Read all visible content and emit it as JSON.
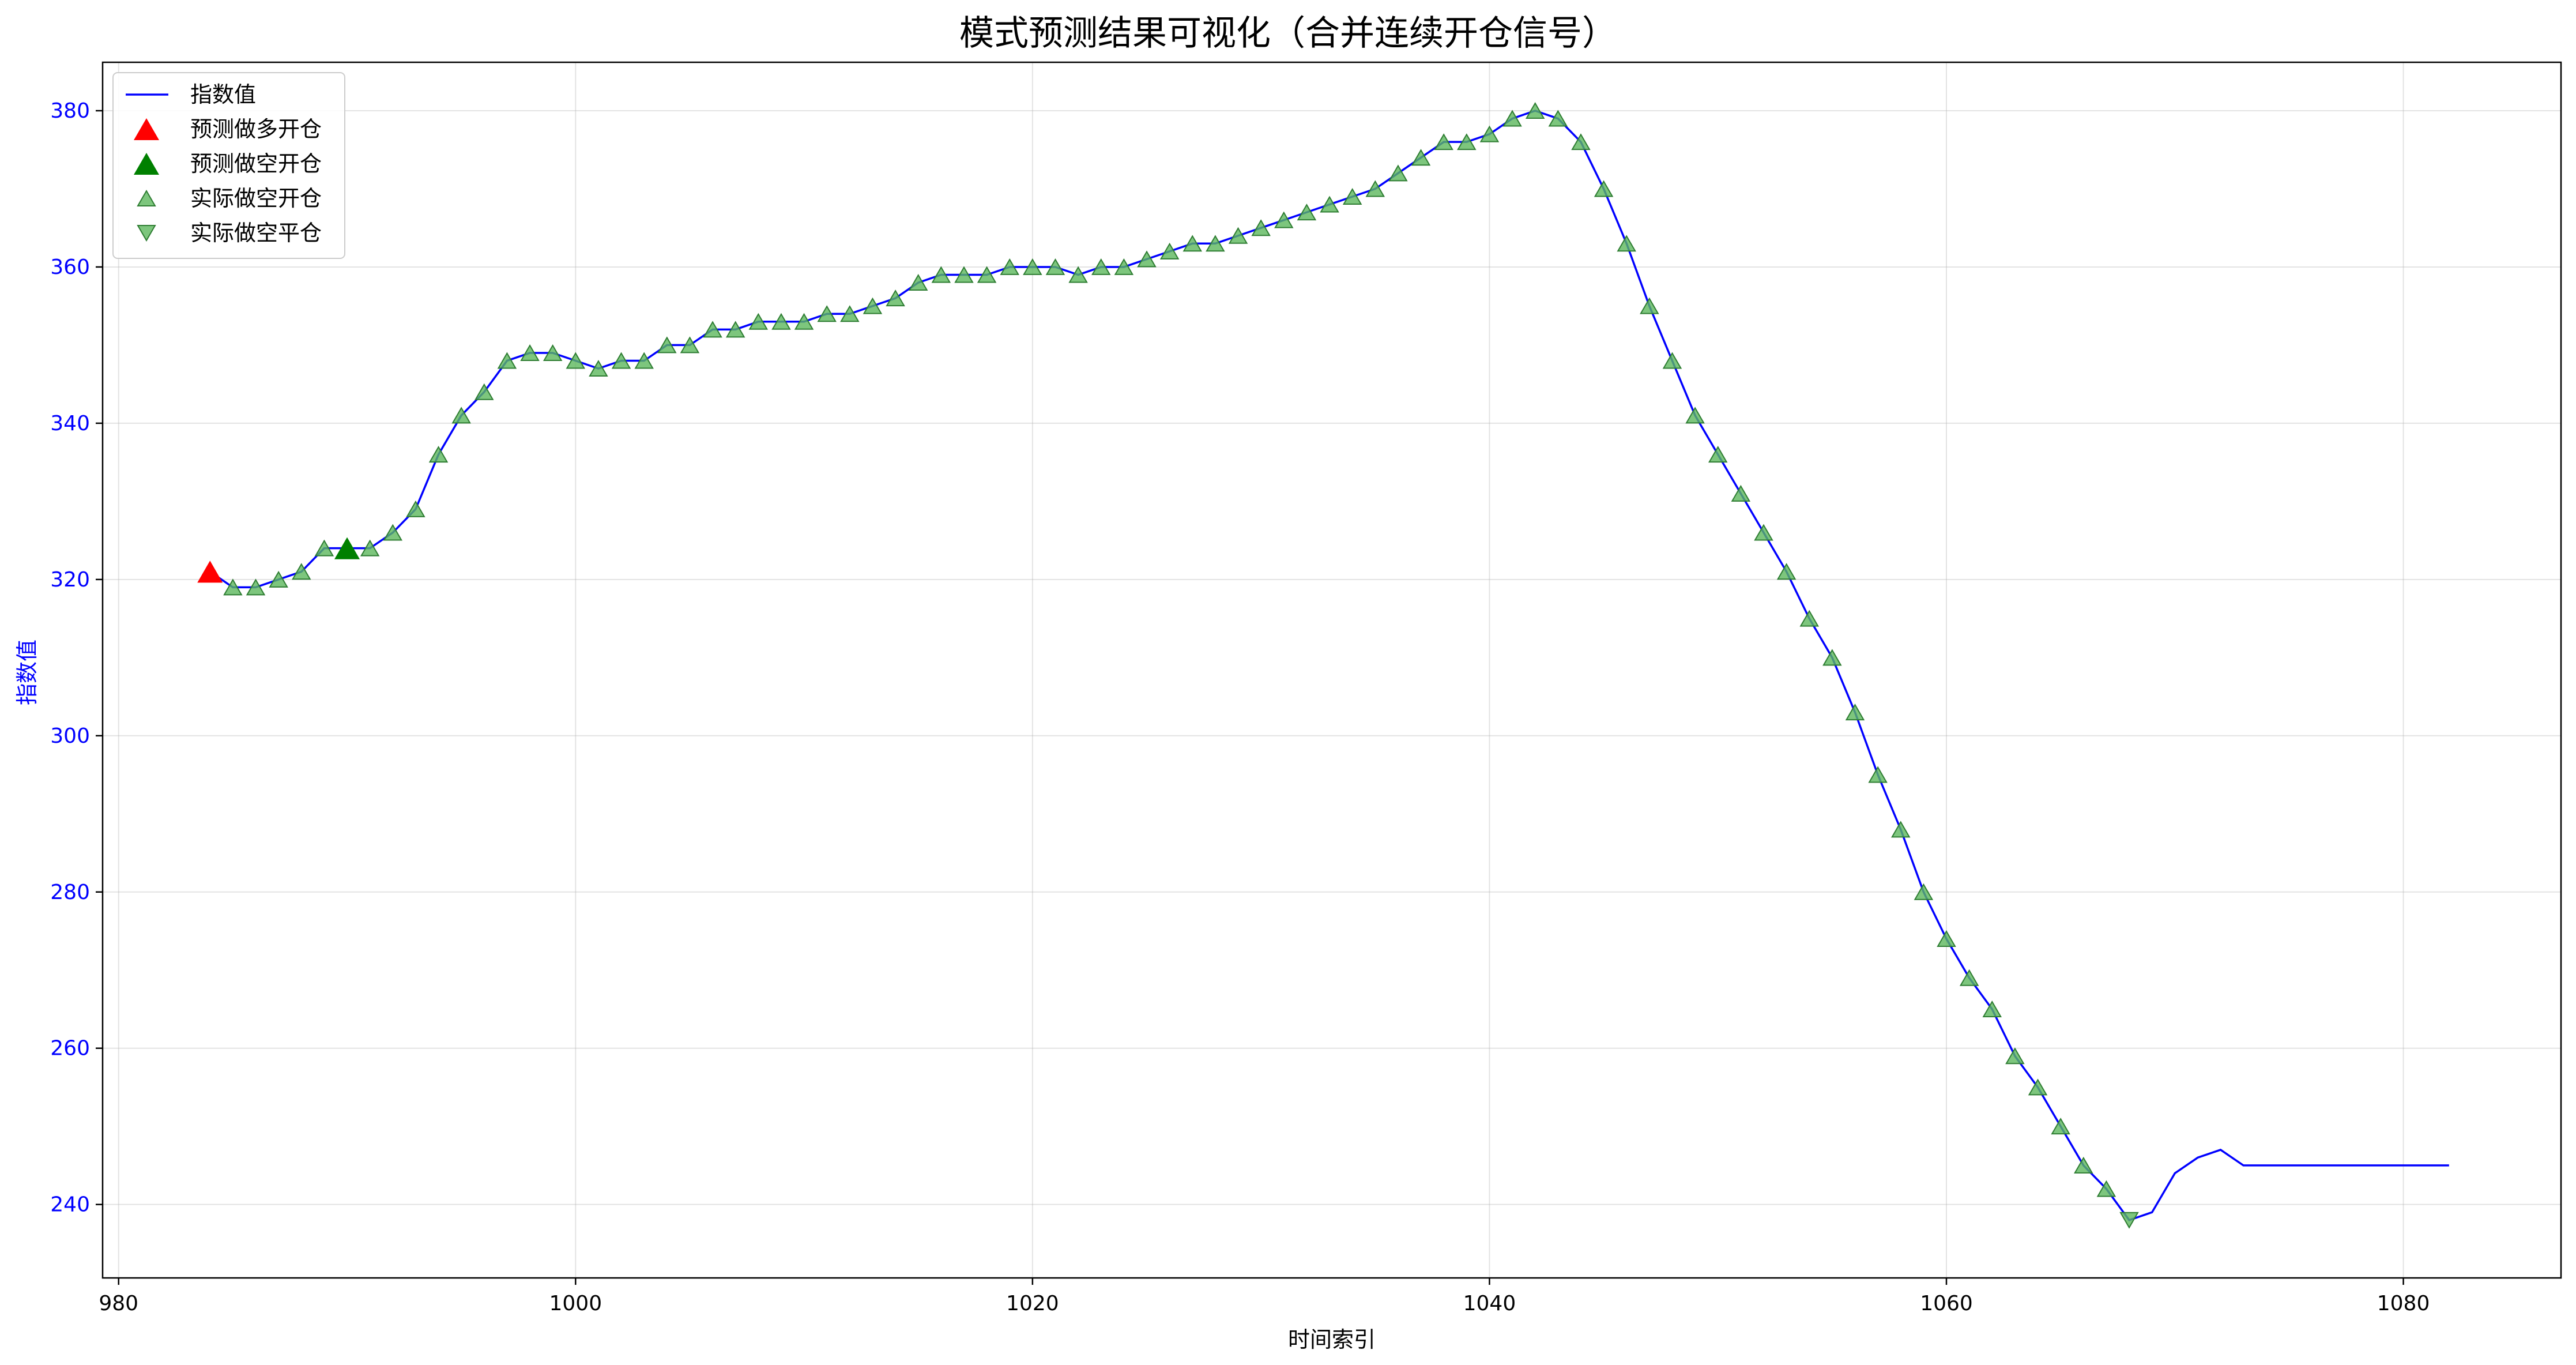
{
  "chart_data": {
    "type": "line",
    "title": "模式预测结果可视化（合并连续开仓信号）",
    "xlabel": "时间索引",
    "ylabel": "指数值",
    "xlim": [
      979.3,
      1086.9
    ],
    "ylim": [
      230.6,
      386.2
    ],
    "xticks": [
      980,
      1000,
      1020,
      1040,
      1060,
      1080
    ],
    "yticks": [
      240,
      260,
      280,
      300,
      320,
      340,
      360,
      380
    ],
    "grid": true,
    "legend_position": "top-left",
    "colors": {
      "line": "#0000ff",
      "pred_long": "#ff0000",
      "pred_short": "#008000",
      "actual": "#5cb85c",
      "actual_edge": "#2e7d32",
      "ytick_color": "#0000ff"
    },
    "legend": [
      {
        "label": "指数值",
        "marker": "line"
      },
      {
        "label": "预测做多开仓",
        "marker": "pred_long"
      },
      {
        "label": "预测做空开仓",
        "marker": "pred_short"
      },
      {
        "label": "实际做空开仓",
        "marker": "actual_open"
      },
      {
        "label": "实际做空平仓",
        "marker": "actual_close"
      }
    ],
    "series": [
      {
        "name": "指数值",
        "x": [
          984,
          985,
          986,
          987,
          988,
          989,
          990,
          991,
          992,
          993,
          994,
          995,
          996,
          997,
          998,
          999,
          1000,
          1001,
          1002,
          1003,
          1004,
          1005,
          1006,
          1007,
          1008,
          1009,
          1010,
          1011,
          1012,
          1013,
          1014,
          1015,
          1016,
          1017,
          1018,
          1019,
          1020,
          1021,
          1022,
          1023,
          1024,
          1025,
          1026,
          1027,
          1028,
          1029,
          1030,
          1031,
          1032,
          1033,
          1034,
          1035,
          1036,
          1037,
          1038,
          1039,
          1040,
          1041,
          1042,
          1043,
          1044,
          1045,
          1046,
          1047,
          1048,
          1049,
          1050,
          1051,
          1052,
          1053,
          1054,
          1055,
          1056,
          1057,
          1058,
          1059,
          1060,
          1061,
          1062,
          1063,
          1064,
          1065,
          1066,
          1067,
          1068,
          1069,
          1070,
          1071,
          1072,
          1073,
          1074,
          1075,
          1076,
          1077,
          1078,
          1079,
          1080,
          1081,
          1082
        ],
        "y": [
          321,
          319,
          319,
          320,
          321,
          324,
          324,
          324,
          326,
          329,
          336,
          341,
          344,
          348,
          349,
          349,
          348,
          347,
          348,
          348,
          350,
          350,
          352,
          352,
          353,
          353,
          353,
          354,
          354,
          355,
          356,
          358,
          359,
          359,
          359,
          360,
          360,
          360,
          359,
          360,
          360,
          361,
          362,
          363,
          363,
          364,
          365,
          366,
          367,
          368,
          369,
          370,
          372,
          374,
          376,
          376,
          377,
          379,
          380,
          379,
          376,
          370,
          363,
          355,
          348,
          341,
          336,
          331,
          326,
          321,
          315,
          310,
          303,
          295,
          288,
          280,
          274,
          269,
          265,
          259,
          255,
          250,
          245,
          242,
          238,
          239,
          244,
          246,
          247,
          245,
          245,
          245,
          245,
          245,
          245,
          245,
          245,
          245,
          245
        ]
      },
      {
        "name": "预测做多开仓",
        "x": [
          984
        ],
        "y": [
          321
        ]
      },
      {
        "name": "预测做空开仓",
        "x": [
          990
        ],
        "y": [
          324
        ]
      },
      {
        "name": "实际做空开仓",
        "x": [
          985,
          986,
          987,
          988,
          989,
          990,
          991,
          992,
          993,
          994,
          995,
          996,
          997,
          998,
          999,
          1000,
          1001,
          1002,
          1003,
          1004,
          1005,
          1006,
          1007,
          1008,
          1009,
          1010,
          1011,
          1012,
          1013,
          1014,
          1015,
          1016,
          1017,
          1018,
          1019,
          1020,
          1021,
          1022,
          1023,
          1024,
          1025,
          1026,
          1027,
          1028,
          1029,
          1030,
          1031,
          1032,
          1033,
          1034,
          1035,
          1036,
          1037,
          1038,
          1039,
          1040,
          1041,
          1042,
          1043,
          1044,
          1045,
          1046,
          1047,
          1048,
          1049,
          1050,
          1051,
          1052,
          1053,
          1054,
          1055,
          1056,
          1057,
          1058,
          1059,
          1060,
          1061,
          1062,
          1063,
          1064,
          1065,
          1066,
          1067
        ],
        "y": [
          319,
          319,
          320,
          321,
          324,
          324,
          324,
          326,
          329,
          336,
          341,
          344,
          348,
          349,
          349,
          348,
          347,
          348,
          348,
          350,
          350,
          352,
          352,
          353,
          353,
          353,
          354,
          354,
          355,
          356,
          358,
          359,
          359,
          359,
          360,
          360,
          360,
          359,
          360,
          360,
          361,
          362,
          363,
          363,
          364,
          365,
          366,
          367,
          368,
          369,
          370,
          372,
          374,
          376,
          376,
          377,
          379,
          380,
          379,
          376,
          370,
          363,
          355,
          348,
          341,
          336,
          331,
          326,
          321,
          315,
          310,
          303,
          295,
          288,
          280,
          274,
          269,
          265,
          259,
          255,
          250,
          245,
          242
        ]
      },
      {
        "name": "实际做空平仓",
        "x": [
          1068
        ],
        "y": [
          238
        ]
      }
    ]
  }
}
